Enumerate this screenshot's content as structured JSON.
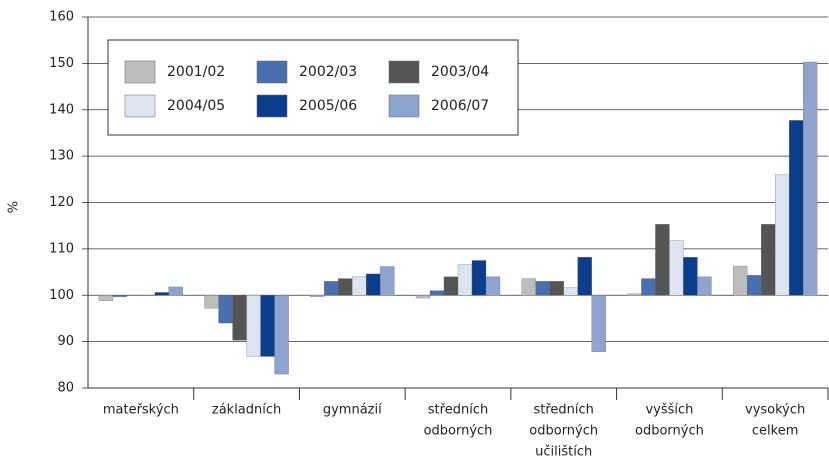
{
  "chart_data": {
    "type": "bar",
    "y_label": "%",
    "categories": [
      [
        "mateřských"
      ],
      [
        "základních"
      ],
      [
        "gymnázií"
      ],
      [
        "středních",
        "odborných"
      ],
      [
        "středních",
        "odborných",
        "učilištích"
      ],
      [
        "vyšších",
        "odborných"
      ],
      [
        "vysokých",
        "celkem"
      ]
    ],
    "baseline": 100,
    "series": [
      {
        "name": "2001/02",
        "color": "#bdbdbd",
        "values": [
          98.8,
          97.2,
          99.7,
          99.4,
          103.6,
          100.3,
          106.3
        ]
      },
      {
        "name": "2002/03",
        "color": "#4a6fae",
        "values": [
          99.7,
          94,
          103,
          101,
          103,
          103.6,
          104.3
        ]
      },
      {
        "name": "2003/04",
        "color": "#555555",
        "values": [
          100,
          90.3,
          103.6,
          104,
          103,
          115.3,
          115.3
        ]
      },
      {
        "name": "2004/05",
        "color": "#dde4f0",
        "values": [
          100,
          86.8,
          104,
          106.6,
          101.6,
          111.8,
          126
        ]
      },
      {
        "name": "2005/06",
        "color": "#0b3e8c",
        "values": [
          100.6,
          86.8,
          104.6,
          107.5,
          108.2,
          108.2,
          137.7
        ]
      },
      {
        "name": "2006/07",
        "color": "#8fa3cf",
        "values": [
          101.8,
          83,
          106.2,
          104,
          87.8,
          104,
          150.3
        ]
      }
    ],
    "ylim": [
      80,
      160
    ],
    "yticks": [
      80,
      90,
      100,
      110,
      120,
      130,
      140,
      150,
      160
    ],
    "grid": true
  }
}
